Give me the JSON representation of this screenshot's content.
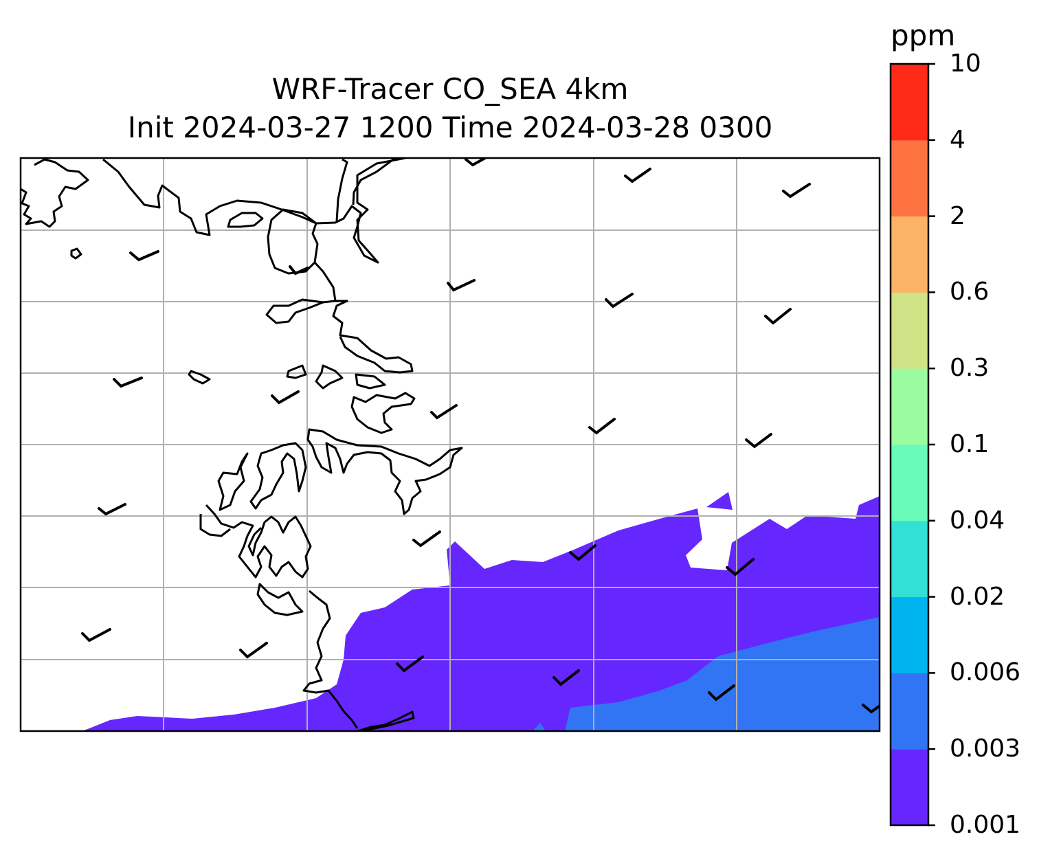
{
  "title_line1": "WRF-Tracer CO_SEA 4km",
  "title_line2": "Init 2024-03-27 1200 Time 2024-03-28 0300",
  "colorbar": {
    "unit": "ppm",
    "levels": [
      "0.001",
      "0.003",
      "0.006",
      "0.02",
      "0.04",
      "0.1",
      "0.3",
      "0.6",
      "2",
      "4",
      "10"
    ],
    "colors": [
      "#6627ff",
      "#3275f4",
      "#00b4ef",
      "#32e0d6",
      "#69fbb9",
      "#9bfb9f",
      "#cfe286",
      "#fdb365",
      "#ff7343",
      "#ff2a18"
    ]
  },
  "map": {
    "gridlines": true,
    "coastline_color": "#000000",
    "tracer_fill_levels_visible": [
      "0.001",
      "0.003"
    ]
  }
}
